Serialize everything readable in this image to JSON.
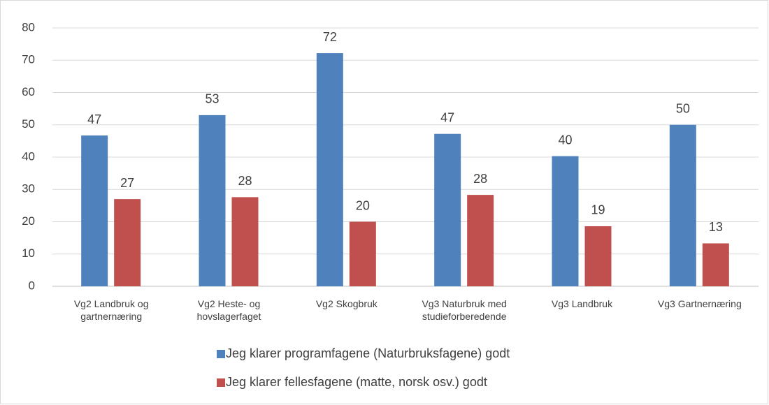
{
  "chart_data": {
    "type": "bar",
    "categories": [
      "Vg2 Landbruk og gartnernæring",
      "Vg2 Heste- og hovslagerfaget",
      "Vg2 Skogbruk",
      "Vg3 Naturbruk med studieforberedende",
      "Vg3 Landbruk",
      "Vg3 Gartnernæring"
    ],
    "series": [
      {
        "name": "Jeg klarer programfagene (Naturbruksfagene) godt",
        "color": "#4f81bd",
        "values": [
          46.7,
          53,
          72.2,
          47.2,
          40.3,
          50
        ],
        "value_labels": [
          "47",
          "53",
          "72",
          "47",
          "40",
          "50"
        ]
      },
      {
        "name": "Jeg klarer fellesfagene (matte, norsk osv.) godt",
        "color": "#c0504d",
        "values": [
          27,
          27.6,
          20,
          28.3,
          18.6,
          13.3
        ],
        "value_labels": [
          "27",
          "28",
          "20",
          "28",
          "19",
          "13"
        ]
      }
    ],
    "ylim": [
      0,
      80
    ],
    "yticks": [
      0,
      10,
      20,
      30,
      40,
      50,
      60,
      70,
      80
    ],
    "grid": true,
    "legend": "bottom"
  }
}
